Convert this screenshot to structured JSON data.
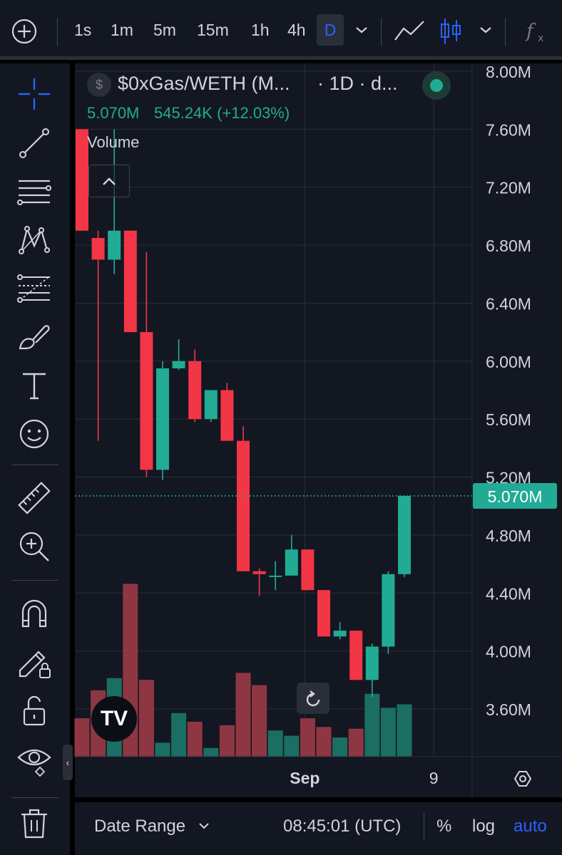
{
  "toolbar": {
    "intervals": [
      "1s",
      "1m",
      "5m",
      "15m",
      "1h",
      "4h"
    ],
    "active_interval": "D",
    "icons": [
      "add-circle-icon",
      "chevron-down-icon",
      "line-chart-icon",
      "candles-icon",
      "chevron-down-icon",
      "fx-icon"
    ]
  },
  "left_tools": [
    "crosshair-icon",
    "trendline-icon",
    "horizontal-lines-icon",
    "pattern-icon",
    "fib-icon",
    "brush-icon",
    "text-icon",
    "emoji-icon",
    "ruler-icon",
    "zoom-in-icon",
    "magnet-icon",
    "lock-pencil-icon",
    "unlock-icon",
    "eye-icon",
    "trash-icon"
  ],
  "legend": {
    "symbol": "$0xGas/WETH (M...",
    "timeframe": "· 1D · d...",
    "price": "5.070M",
    "change": "545.24K (+12.03%)",
    "volume_label": "Volume"
  },
  "bottom_bar": {
    "date_range": "Date Range",
    "time": "08:45:01 (UTC)",
    "percent": "%",
    "log": "log",
    "auto": "auto"
  },
  "chart_data": {
    "type": "candlestick",
    "y_unit": "M",
    "ylim": [
      3.2,
      8.1
    ],
    "y_ticks": [
      8.0,
      7.6,
      7.2,
      6.8,
      6.4,
      6.0,
      5.6,
      5.2,
      4.8,
      4.4,
      4.0,
      3.6
    ],
    "y_tick_labels": [
      "8.00M",
      "7.60M",
      "7.20M",
      "6.80M",
      "6.40M",
      "6.00M",
      "5.60M",
      "5.20M",
      "4.80M",
      "4.40M",
      "4.00M",
      "3.60M"
    ],
    "x_labels": [
      {
        "label": "Sep",
        "index": 14
      },
      {
        "label": "9",
        "index": 22
      }
    ],
    "last_price": 5.07,
    "last_price_label": "5.070M",
    "candles": [
      {
        "o": 7.6,
        "h": 7.6,
        "l": 6.9,
        "c": 6.9,
        "v": 0.22
      },
      {
        "o": 6.85,
        "h": 6.9,
        "l": 5.45,
        "c": 6.7,
        "v": 0.38
      },
      {
        "o": 6.7,
        "h": 7.6,
        "l": 6.6,
        "c": 6.9,
        "v": 0.45
      },
      {
        "o": 6.9,
        "h": 6.9,
        "l": 6.2,
        "c": 6.2,
        "v": 0.99
      },
      {
        "o": 6.2,
        "h": 6.75,
        "l": 5.2,
        "c": 5.25,
        "v": 0.44
      },
      {
        "o": 5.25,
        "h": 6.0,
        "l": 5.18,
        "c": 5.95,
        "v": 0.08
      },
      {
        "o": 5.95,
        "h": 6.15,
        "l": 5.94,
        "c": 6.0,
        "v": 0.25
      },
      {
        "o": 6.0,
        "h": 6.08,
        "l": 5.58,
        "c": 5.6,
        "v": 0.2
      },
      {
        "o": 5.6,
        "h": 5.8,
        "l": 5.58,
        "c": 5.8,
        "v": 0.05
      },
      {
        "o": 5.8,
        "h": 5.85,
        "l": 5.45,
        "c": 5.45,
        "v": 0.18
      },
      {
        "o": 5.45,
        "h": 5.55,
        "l": 4.55,
        "c": 4.55,
        "v": 0.48
      },
      {
        "o": 4.55,
        "h": 4.57,
        "l": 4.38,
        "c": 4.53,
        "v": 0.41
      },
      {
        "o": 4.52,
        "h": 4.62,
        "l": 4.42,
        "c": 4.52,
        "v": 0.15
      },
      {
        "o": 4.52,
        "h": 4.8,
        "l": 4.52,
        "c": 4.7,
        "v": 0.12
      },
      {
        "o": 4.7,
        "h": 4.7,
        "l": 4.42,
        "c": 4.42,
        "v": 0.22
      },
      {
        "o": 4.42,
        "h": 4.42,
        "l": 4.1,
        "c": 4.1,
        "v": 0.17
      },
      {
        "o": 4.1,
        "h": 4.2,
        "l": 4.08,
        "c": 4.14,
        "v": 0.11
      },
      {
        "o": 4.14,
        "h": 4.14,
        "l": 3.8,
        "c": 3.8,
        "v": 0.16
      },
      {
        "o": 3.8,
        "h": 4.05,
        "l": 3.68,
        "c": 4.03,
        "v": 0.36
      },
      {
        "o": 4.03,
        "h": 4.55,
        "l": 3.98,
        "c": 4.53,
        "v": 0.28
      },
      {
        "o": 4.53,
        "h": 5.07,
        "l": 4.51,
        "c": 5.07,
        "v": 0.3
      }
    ]
  },
  "colors": {
    "up": "#22ab94",
    "down": "#f23645",
    "up_volume": "#1b6e63",
    "down_volume": "#8e3743",
    "grid": "#2a2e39",
    "background": "#131722",
    "text": "#d1d4dc",
    "accent": "#2962ff"
  }
}
